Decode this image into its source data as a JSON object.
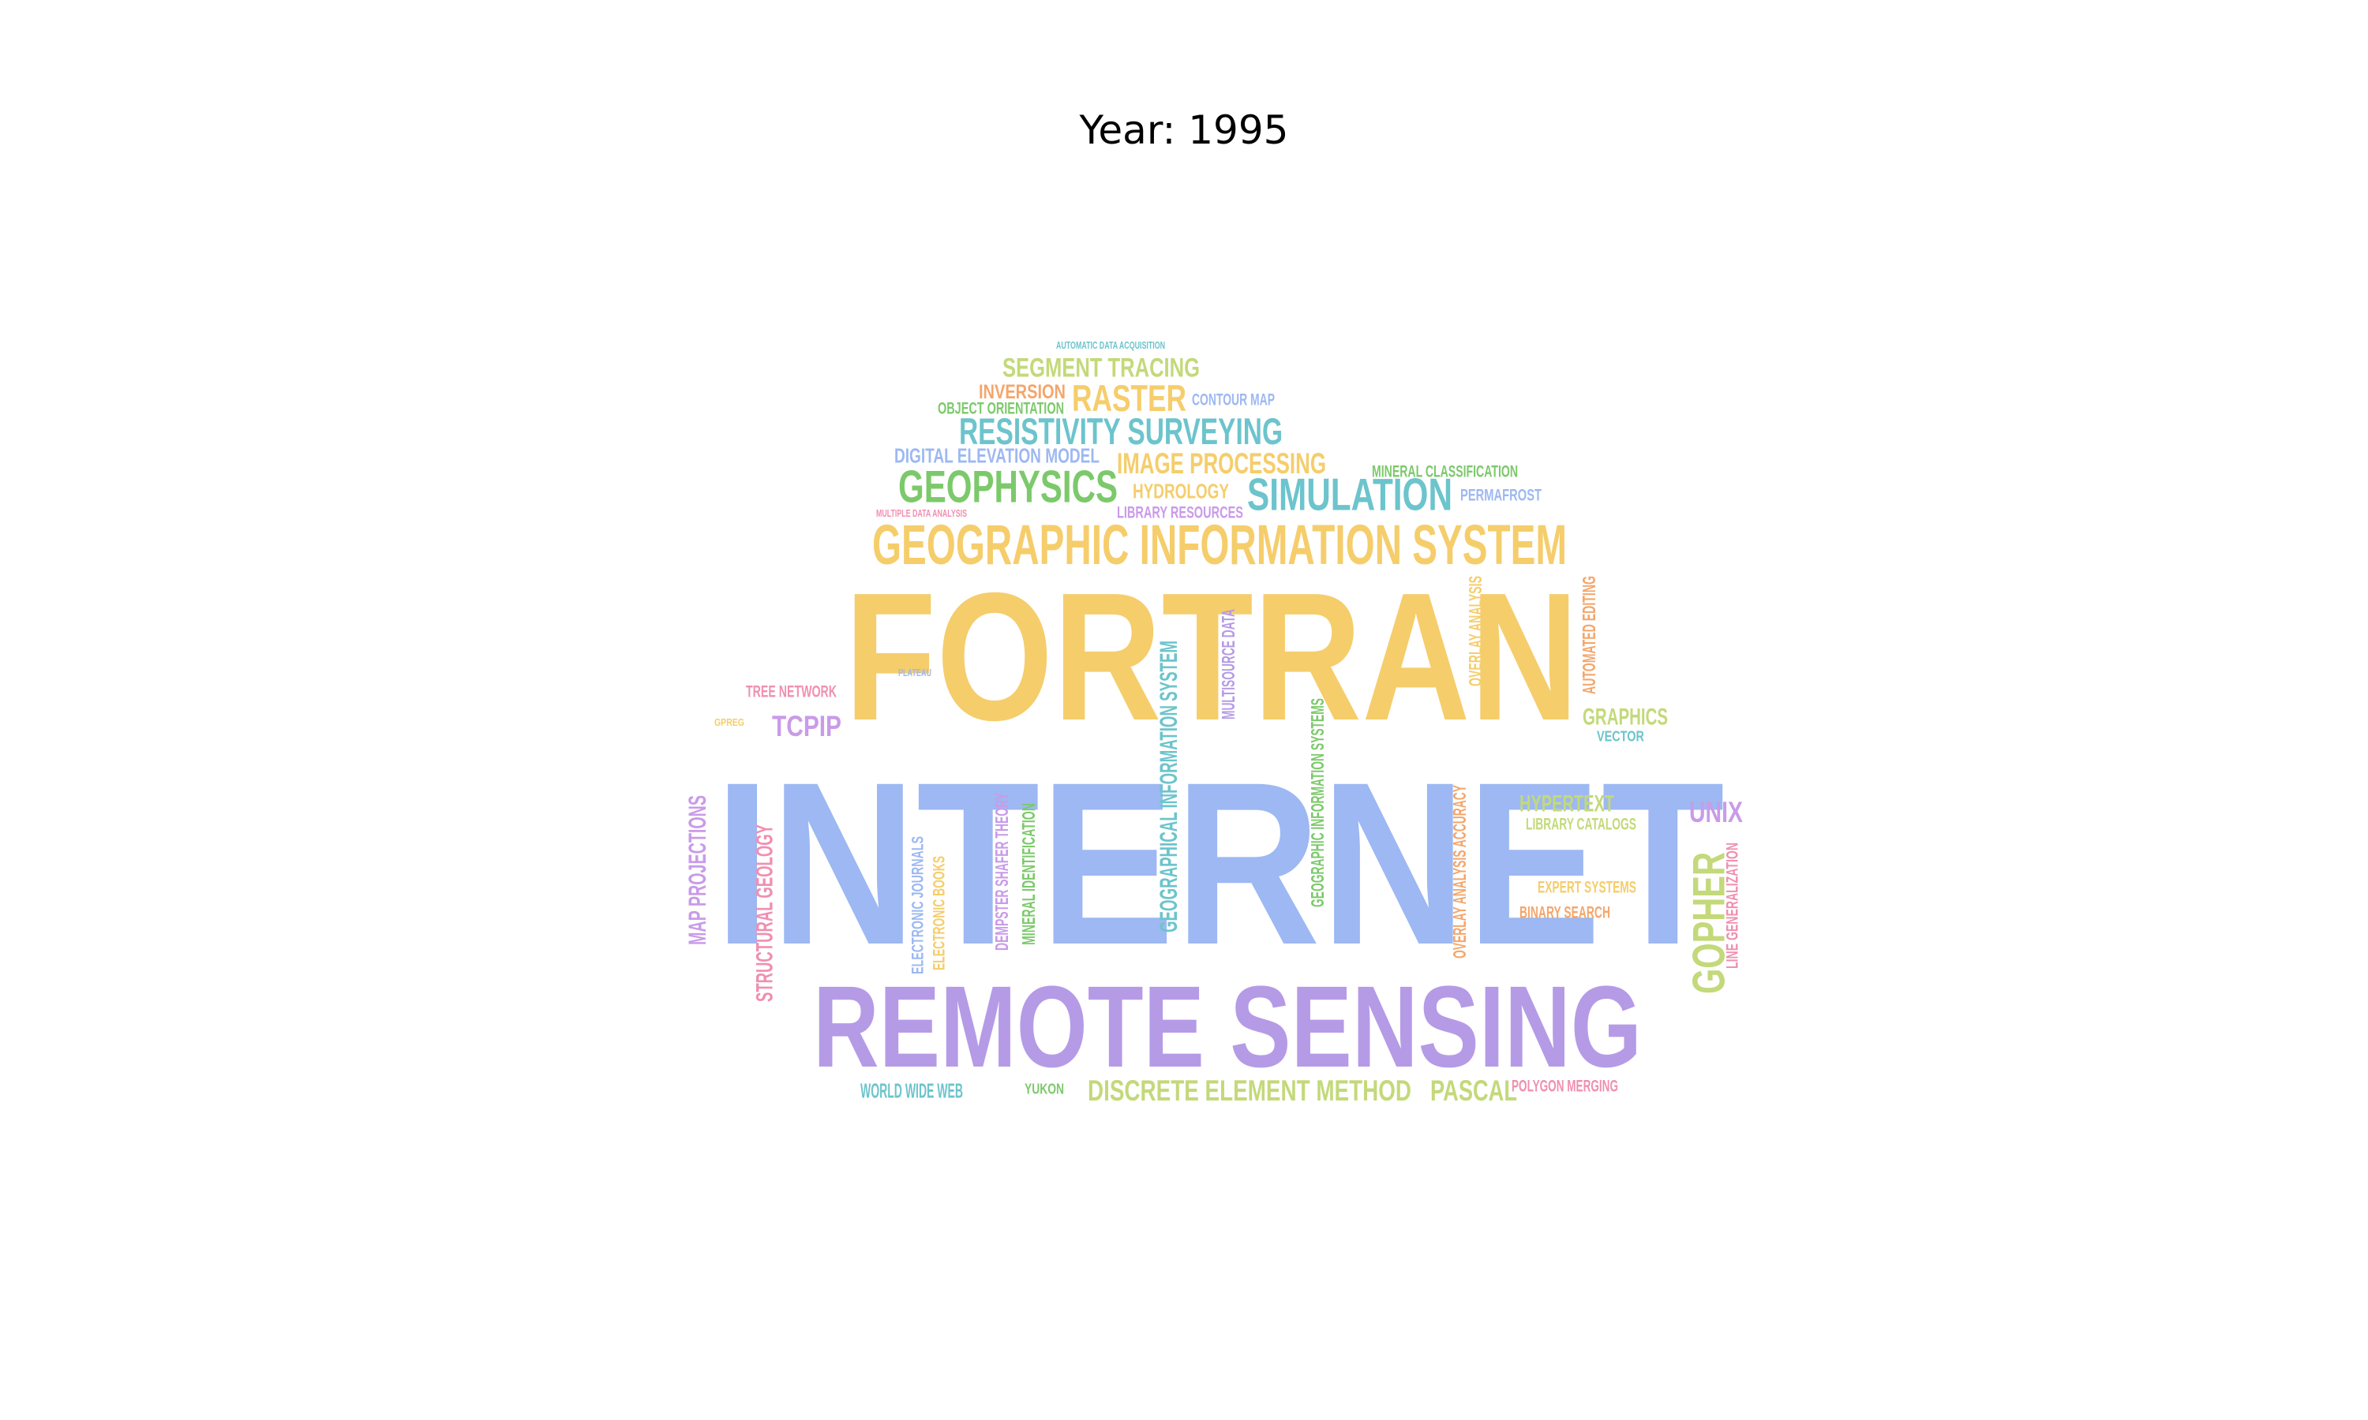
{
  "title": "Year: 1995",
  "palette": {
    "yellow": "#f5cd6b",
    "blue": "#9db8f2",
    "purple": "#b59be6",
    "teal": "#6cc4cc",
    "green": "#7cc96b",
    "lime": "#c3d97a",
    "orange": "#f4a66b",
    "pink": "#f08fb1",
    "violet": "#c99be8"
  },
  "words": [
    {
      "text": "INTERNET",
      "color": "blue"
    },
    {
      "text": "FORTRAN",
      "color": "yellow"
    },
    {
      "text": "REMOTE SENSING",
      "color": "purple"
    },
    {
      "text": "GEOGRAPHIC INFORMATION SYSTEM",
      "color": "yellow"
    },
    {
      "text": "GEOPHYSICS",
      "color": "green"
    },
    {
      "text": "SIMULATION",
      "color": "teal"
    },
    {
      "text": "RESISTIVITY SURVEYING",
      "color": "teal"
    },
    {
      "text": "RASTER",
      "color": "yellow"
    },
    {
      "text": "SEGMENT TRACING",
      "color": "lime"
    },
    {
      "text": "IMAGE PROCESSING",
      "color": "yellow"
    },
    {
      "text": "DISCRETE ELEMENT METHOD",
      "color": "lime"
    },
    {
      "text": "PASCAL",
      "color": "lime"
    },
    {
      "text": "GOPHER",
      "color": "lime"
    },
    {
      "text": "TCPIP",
      "color": "violet"
    },
    {
      "text": "UNIX",
      "color": "violet"
    },
    {
      "text": "WORLD WIDE WEB",
      "color": "teal"
    },
    {
      "text": "HYPERTEXT",
      "color": "lime"
    },
    {
      "text": "GRAPHICS",
      "color": "lime"
    },
    {
      "text": "DIGITAL ELEVATION MODEL",
      "color": "blue"
    },
    {
      "text": "HYDROLOGY",
      "color": "yellow"
    },
    {
      "text": "INVERSION",
      "color": "orange"
    },
    {
      "text": "OBJECT ORIENTATION",
      "color": "green"
    },
    {
      "text": "CONTOUR MAP",
      "color": "blue"
    },
    {
      "text": "LIBRARY RESOURCES",
      "color": "violet"
    },
    {
      "text": "MINERAL CLASSIFICATION",
      "color": "green"
    },
    {
      "text": "PERMAFROST",
      "color": "blue"
    },
    {
      "text": "TREE NETWORK",
      "color": "pink"
    },
    {
      "text": "VECTOR",
      "color": "teal"
    },
    {
      "text": "LIBRARY CATALOGS",
      "color": "lime"
    },
    {
      "text": "EXPERT SYSTEMS",
      "color": "yellow"
    },
    {
      "text": "BINARY SEARCH",
      "color": "orange"
    },
    {
      "text": "POLYGON MERGING",
      "color": "pink"
    },
    {
      "text": "YUKON",
      "color": "green"
    },
    {
      "text": "MAP PROJECTIONS",
      "color": "violet"
    },
    {
      "text": "STRUCTURAL GEOLOGY",
      "color": "pink"
    },
    {
      "text": "ELECTRONIC JOURNALS",
      "color": "blue"
    },
    {
      "text": "ELECTRONIC BOOKS",
      "color": "yellow"
    },
    {
      "text": "DEMPSTER SHAFER THEORY",
      "color": "violet"
    },
    {
      "text": "MINERAL IDENTIFICATION",
      "color": "green"
    },
    {
      "text": "GEOGRAPHICAL INFORMATION SYSTEM",
      "color": "teal"
    },
    {
      "text": "MULTISOURCE DATA",
      "color": "purple"
    },
    {
      "text": "GEOGRAPHIC INFORMATION SYSTEMS",
      "color": "green"
    },
    {
      "text": "OVERLAY ANALYSIS ACCURACY",
      "color": "orange"
    },
    {
      "text": "OVERLAY ANALYSIS",
      "color": "yellow"
    },
    {
      "text": "AUTOMATED EDITING",
      "color": "orange"
    },
    {
      "text": "LINE GENERALIZATION",
      "color": "pink"
    },
    {
      "text": "AUTOMATIC DATA ACQUISITION",
      "color": "teal"
    },
    {
      "text": "MULTIPLE DATA ANALYSIS",
      "color": "pink"
    },
    {
      "text": "PLATEAU",
      "color": "blue"
    },
    {
      "text": "GPREG",
      "color": "yellow"
    }
  ]
}
